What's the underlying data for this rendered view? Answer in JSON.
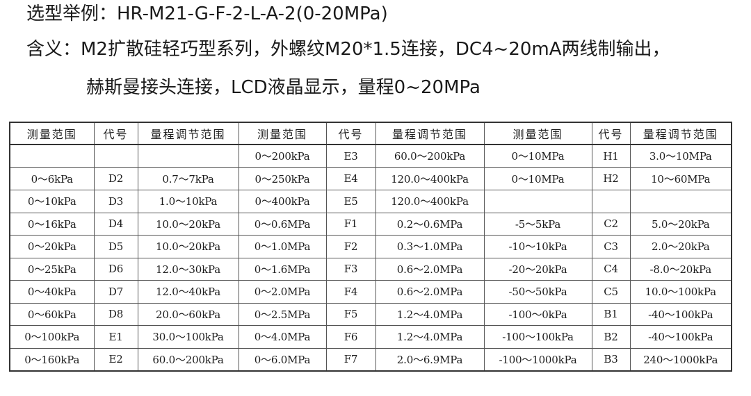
{
  "intro": {
    "example": "选型举例：HR-M21-G-F-2-L-A-2(0-20MPa)",
    "meaning": "含义：M2扩散硅轻巧型系列，外螺纹M20*1.5连接，DC4~20mA两线制输出，",
    "meaning_cont": "赫斯曼接头连接，LCD液晶显示，量程0~20MPa"
  },
  "table": {
    "headers": [
      "测量范围",
      "代号",
      "量程调节范围",
      "测量范围",
      "代号",
      "量程调节范围",
      "测量范围",
      "代号",
      "量程调节范围"
    ],
    "rows": [
      [
        "",
        "",
        "",
        "0～200kPa",
        "E3",
        "60.0～200kPa",
        "0～10MPa",
        "H1",
        "3.0～10MPa"
      ],
      [
        "0～6kPa",
        "D2",
        "0.7～7kPa",
        "0～250kPa",
        "E4",
        "120.0～400kPa",
        "0～10MPa",
        "H2",
        "10～60MPa"
      ],
      [
        "0～10kPa",
        "D3",
        "1.0～10kPa",
        "0～400kPa",
        "E5",
        "120.0～400kPa",
        "",
        "",
        ""
      ],
      [
        "0～16kPa",
        "D4",
        "10.0～20kPa",
        "0～0.6MPa",
        "F1",
        "0.2～0.6MPa",
        "-5～5kPa",
        "C2",
        "5.0～20kPa"
      ],
      [
        "0～20kPa",
        "D5",
        "10.0～20kPa",
        "0～1.0MPa",
        "F2",
        "0.3～1.0MPa",
        "-10～10kPa",
        "C3",
        "2.0～20kPa"
      ],
      [
        "0～25kPa",
        "D6",
        "12.0～30kPa",
        "0～1.6MPa",
        "F3",
        "0.6～2.0MPa",
        "-20～20kPa",
        "C4",
        "-8.0～20kPa"
      ],
      [
        "0～40kPa",
        "D7",
        "12.0～40kPa",
        "0～2.0MPa",
        "F4",
        "0.6～2.0MPa",
        "-50～50kPa",
        "C5",
        "10.0～100kPa"
      ],
      [
        "0～60kPa",
        "D8",
        "20.0～60kPa",
        "0～2.5MPa",
        "F5",
        "1.2～4.0MPa",
        "-100～0kPa",
        "B1",
        "-40～100kPa"
      ],
      [
        "0～100kPa",
        "E1",
        "30.0～100kPa",
        "0～4.0MPa",
        "F6",
        "1.2～4.0MPa",
        "-100～100kPa",
        "B2",
        "-40～100kPa"
      ],
      [
        "0～160kPa",
        "E2",
        "60.0～200kPa",
        "0～6.0MPa",
        "F7",
        "2.0～6.9MPa",
        "-100～1000kPa",
        "B3",
        "240～1000kPa"
      ]
    ]
  }
}
